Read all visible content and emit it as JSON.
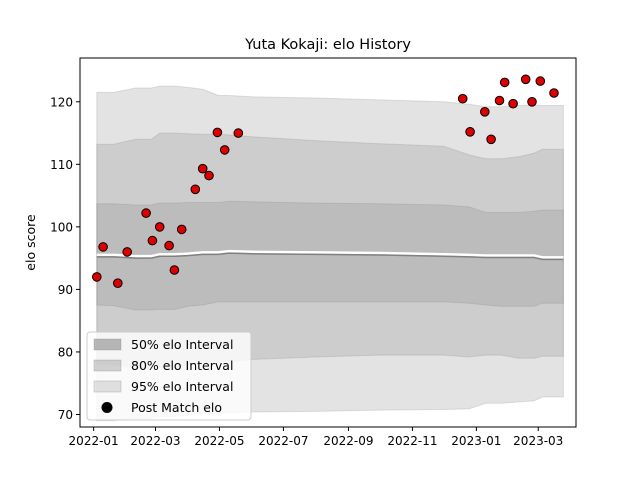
{
  "chart_data": {
    "type": "scatter",
    "title": "Yuta Kokaji: elo History",
    "xlabel": "",
    "ylabel": "elo score",
    "xlim": [
      "2021-12-19",
      "2023-04-06"
    ],
    "ylim": [
      68,
      127
    ],
    "x_ticks": [
      "2022-01",
      "2022-03",
      "2022-05",
      "2022-07",
      "2022-09",
      "2022-11",
      "2023-01",
      "2023-03"
    ],
    "y_ticks": [
      70,
      80,
      90,
      100,
      110,
      120
    ],
    "grid": false,
    "legend_position": "lower left",
    "legend": [
      {
        "label": "50% elo Interval",
        "color": "#999999"
      },
      {
        "label": "80% elo Interval",
        "color": "#bbbbbb"
      },
      {
        "label": "95% elo Interval",
        "color": "#dddddd"
      },
      {
        "label": "Post Match elo",
        "color": "#000000"
      }
    ],
    "colors": {
      "point_fill": "#dd0000",
      "point_edge": "#000000",
      "mean_line": "#808080",
      "mean_glow": "#ffffff"
    },
    "bands": {
      "dates": [
        "2022-01-04",
        "2022-01-20",
        "2022-02-10",
        "2022-02-25",
        "2022-03-05",
        "2022-03-20",
        "2022-04-01",
        "2022-04-15",
        "2022-04-30",
        "2022-05-10",
        "2022-06-01",
        "2022-08-01",
        "2022-10-01",
        "2022-12-01",
        "2022-12-25",
        "2023-01-10",
        "2023-01-25",
        "2023-02-10",
        "2023-02-25",
        "2023-03-05",
        "2023-03-25"
      ],
      "mean": [
        95.2,
        95.2,
        95.0,
        95.0,
        95.3,
        95.3,
        95.4,
        95.6,
        95.6,
        95.8,
        95.7,
        95.6,
        95.5,
        95.3,
        95.2,
        95.1,
        95.1,
        95.1,
        95.1,
        94.8,
        94.8
      ],
      "p50_low": [
        87.5,
        87.4,
        86.7,
        86.7,
        86.8,
        86.8,
        87.3,
        87.5,
        88.0,
        88.0,
        88.0,
        88.0,
        88.0,
        88.0,
        87.8,
        87.5,
        87.3,
        87.3,
        87.3,
        87.8,
        87.8
      ],
      "p50_high": [
        103.7,
        103.7,
        103.5,
        103.5,
        103.8,
        103.8,
        103.9,
        103.9,
        103.9,
        104.1,
        104.0,
        103.8,
        103.7,
        103.5,
        103.2,
        102.3,
        102.3,
        102.3,
        102.5,
        102.7,
        102.7
      ],
      "p80_low": [
        78.0,
        78.0,
        77.5,
        77.5,
        77.5,
        77.5,
        78.0,
        78.3,
        78.5,
        78.5,
        78.8,
        79.2,
        79.5,
        79.5,
        79.2,
        79.5,
        79.5,
        79.0,
        79.0,
        79.3,
        79.3
      ],
      "p80_high": [
        113.2,
        113.2,
        114.0,
        114.0,
        115.0,
        115.0,
        114.9,
        114.8,
        114.8,
        114.7,
        114.4,
        113.8,
        113.3,
        112.9,
        111.5,
        110.9,
        110.9,
        111.2,
        111.8,
        112.4,
        112.4
      ],
      "p95_low": [
        69.0,
        69.0,
        69.4,
        69.4,
        69.7,
        69.7,
        69.9,
        70.2,
        70.2,
        70.3,
        70.4,
        70.5,
        70.7,
        70.8,
        70.9,
        71.8,
        71.8,
        72.0,
        72.2,
        72.8,
        72.8
      ],
      "p95_high": [
        121.5,
        121.5,
        122.2,
        122.2,
        122.5,
        122.5,
        122.3,
        122.0,
        121.0,
        121.0,
        120.8,
        120.6,
        120.3,
        120.0,
        119.6,
        119.2,
        119.2,
        119.4,
        119.5,
        119.4,
        119.4
      ]
    },
    "points": [
      {
        "x": "2022-01-04",
        "y": 92.0
      },
      {
        "x": "2022-01-10",
        "y": 96.8
      },
      {
        "x": "2022-01-24",
        "y": 91.0
      },
      {
        "x": "2022-02-02",
        "y": 96.0
      },
      {
        "x": "2022-02-20",
        "y": 102.2
      },
      {
        "x": "2022-02-26",
        "y": 97.8
      },
      {
        "x": "2022-03-05",
        "y": 100.0
      },
      {
        "x": "2022-03-14",
        "y": 97.0
      },
      {
        "x": "2022-03-19",
        "y": 93.1
      },
      {
        "x": "2022-03-26",
        "y": 99.6
      },
      {
        "x": "2022-04-08",
        "y": 106.0
      },
      {
        "x": "2022-04-15",
        "y": 109.3
      },
      {
        "x": "2022-04-21",
        "y": 108.2
      },
      {
        "x": "2022-04-29",
        "y": 115.1
      },
      {
        "x": "2022-05-06",
        "y": 112.3
      },
      {
        "x": "2022-05-19",
        "y": 115.0
      },
      {
        "x": "2022-12-19",
        "y": 120.5
      },
      {
        "x": "2022-12-26",
        "y": 115.2
      },
      {
        "x": "2023-01-09",
        "y": 118.4
      },
      {
        "x": "2023-01-15",
        "y": 114.0
      },
      {
        "x": "2023-01-23",
        "y": 120.2
      },
      {
        "x": "2023-01-28",
        "y": 123.1
      },
      {
        "x": "2023-02-05",
        "y": 119.7
      },
      {
        "x": "2023-02-17",
        "y": 123.6
      },
      {
        "x": "2023-02-23",
        "y": 120.0
      },
      {
        "x": "2023-03-03",
        "y": 123.3
      },
      {
        "x": "2023-03-16",
        "y": 121.4
      }
    ]
  }
}
